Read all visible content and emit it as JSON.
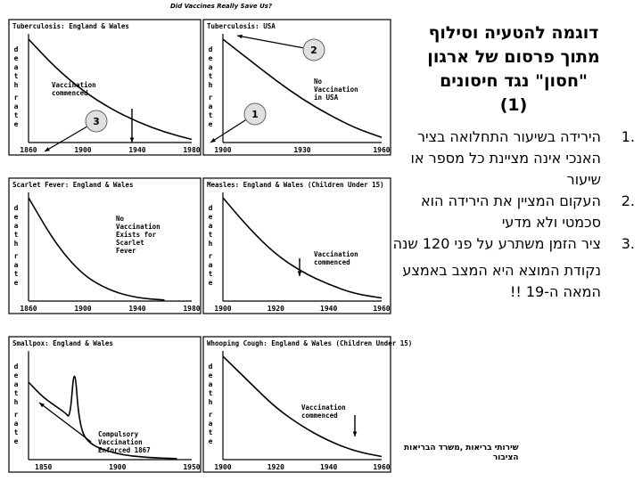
{
  "figure_title": "Did Vaccines Really Save Us?",
  "callouts": {
    "one": "1",
    "two": "2",
    "three": "3"
  },
  "chart_data": [
    {
      "type": "line",
      "title": "Tuberculosis: England & Wales",
      "ylabel": "death rate",
      "x": [
        1860,
        1880,
        1900,
        1920,
        1940,
        1960,
        1980
      ],
      "y": [
        100,
        72,
        50,
        33,
        20,
        10,
        3
      ],
      "xlim": [
        1860,
        1980
      ],
      "ylim": [
        0,
        100
      ],
      "xticks": [
        "1860",
        "1900",
        "1940",
        "1980"
      ],
      "annotations": [
        "Vaccination commenced"
      ]
    },
    {
      "type": "line",
      "title": "Tuberculosis: USA",
      "ylabel": "death rate",
      "x": [
        1900,
        1910,
        1920,
        1930,
        1940,
        1950,
        1960
      ],
      "y": [
        100,
        80,
        60,
        42,
        27,
        14,
        5
      ],
      "xlim": [
        1900,
        1960
      ],
      "ylim": [
        0,
        100
      ],
      "xticks": [
        "1900",
        "1930",
        "1960"
      ],
      "annotations": [
        "No Vaccination in USA"
      ]
    },
    {
      "type": "line",
      "title": "Scarlet Fever: England & Wales",
      "ylabel": "death rate",
      "x": [
        1860,
        1880,
        1900,
        1920,
        1940,
        1960
      ],
      "y": [
        100,
        55,
        25,
        10,
        3,
        1
      ],
      "xlim": [
        1860,
        1980
      ],
      "ylim": [
        0,
        100
      ],
      "xticks": [
        "1860",
        "1900",
        "1940",
        "1980"
      ],
      "annotations": [
        "No Vaccination Exists for Scarlet Fever"
      ]
    },
    {
      "type": "line",
      "title": "Measles: England & Wales (Children Under 15)",
      "ylabel": "death rate",
      "x": [
        1900,
        1910,
        1920,
        1930,
        1940,
        1950,
        1960
      ],
      "y": [
        100,
        70,
        45,
        28,
        16,
        7,
        3
      ],
      "xlim": [
        1900,
        1960
      ],
      "ylim": [
        0,
        100
      ],
      "xticks": [
        "1900",
        "1920",
        "1940",
        "1960"
      ],
      "annotations": [
        "Vaccination commenced"
      ]
    },
    {
      "type": "line",
      "title": "Smallpox: England & Wales",
      "ylabel": "death rate",
      "x": [
        1840,
        1850,
        1860,
        1865,
        1868,
        1871,
        1874,
        1880,
        1900,
        1920,
        1940
      ],
      "y": [
        75,
        60,
        50,
        45,
        40,
        95,
        35,
        15,
        5,
        2,
        1
      ],
      "xlim": [
        1840,
        1950
      ],
      "ylim": [
        0,
        100
      ],
      "xticks": [
        "1850",
        "1900",
        "1950"
      ],
      "annotations": [
        "Compulsory Vaccination Enforced 1867"
      ]
    },
    {
      "type": "line",
      "title": "Whooping Cough: England & Wales (Children Under 15)",
      "ylabel": "death rate",
      "x": [
        1900,
        1910,
        1920,
        1930,
        1940,
        1950,
        1960
      ],
      "y": [
        100,
        75,
        50,
        32,
        18,
        8,
        3
      ],
      "xlim": [
        1900,
        1960
      ],
      "ylim": [
        0,
        100
      ],
      "xticks": [
        "1900",
        "1920",
        "1940",
        "1960"
      ],
      "annotations": [
        "Vaccination commenced"
      ]
    }
  ],
  "text": {
    "heading_lines": [
      "דוגמה להטעיה וסילוף",
      "מתוך פרסום של ארגון",
      "\"חסון\" נגד חיסונים",
      "(1)"
    ],
    "points": [
      {
        "num": "1.",
        "text": "הירידה בשיעור התחלואה בציר האנכי אינה מציינת כל מספר או שיעור"
      },
      {
        "num": "2.",
        "text": "העקום המציין את הירידה הוא סכמטי ולא מדעי"
      },
      {
        "num": "3.",
        "text": "ציר הזמן משתרע על פני 120 שנה"
      }
    ],
    "conclusion": "נקודת המוצא היא המצב באמצע המאה ה-19 !!",
    "footer_line1": "שירותי בריאות ,משרד הבריאות",
    "footer_line2": "הציבור"
  }
}
